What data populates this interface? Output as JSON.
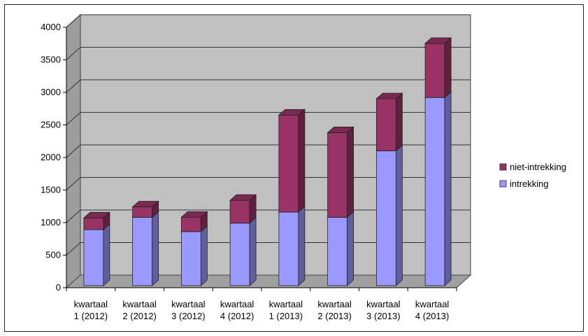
{
  "chart_data": {
    "type": "bar",
    "stacked": true,
    "three_d": true,
    "categories": [
      [
        "kwartaal",
        "1 (2012)"
      ],
      [
        "kwartaal",
        "2 (2012)"
      ],
      [
        "kwartaal",
        "3 (2012)"
      ],
      [
        "kwartaal",
        "4 (2012)"
      ],
      [
        "kwartaal",
        "1 (2013)"
      ],
      [
        "kwartaal",
        "2 (2013)"
      ],
      [
        "kwartaal",
        "3 (2013)"
      ],
      [
        "kwartaal",
        "4 (2013)"
      ]
    ],
    "series": [
      {
        "name": "intrekking",
        "color": "#9999ff",
        "values": [
          860,
          1050,
          830,
          960,
          1130,
          1050,
          2070,
          2890
        ]
      },
      {
        "name": "niet-intrekking",
        "color": "#993366",
        "values": [
          180,
          160,
          220,
          350,
          1490,
          1300,
          800,
          830
        ]
      }
    ],
    "legend_order": [
      "niet-intrekking",
      "intrekking"
    ],
    "y_ticks": [
      "0",
      "500",
      "1000",
      "1500",
      "2000",
      "2500",
      "3000",
      "3500",
      "4000"
    ],
    "ylim": [
      0,
      4000
    ],
    "grid": true,
    "legend_position": "right",
    "wall_color": "#c0c0c0",
    "floor_color": "#a0a0a0"
  }
}
